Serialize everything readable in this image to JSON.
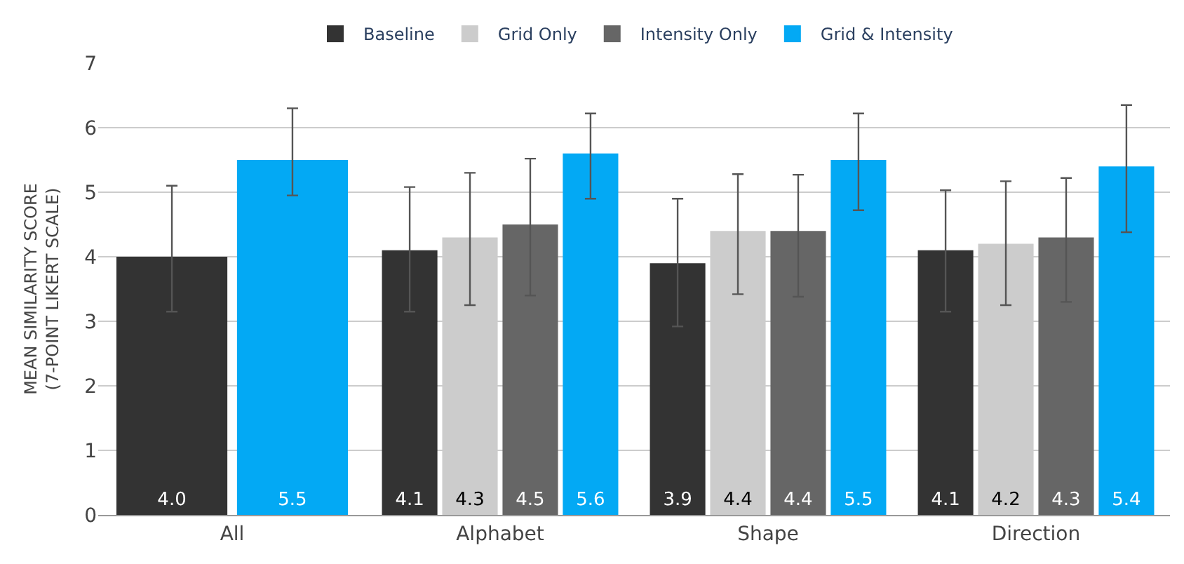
{
  "chart_data": {
    "type": "bar",
    "ylabel": "MEAN SIMILARITY SCORE\n(7-POINT LIKERT SCALE)",
    "categories": [
      "All",
      "Alphabet",
      "Shape",
      "Direction"
    ],
    "ylim": [
      0,
      7
    ],
    "yticks": [
      0,
      1,
      2,
      3,
      4,
      5,
      6,
      7
    ],
    "grid": "y",
    "legend": "top",
    "series": [
      {
        "name": "Baseline",
        "color": "#333333",
        "values": [
          4.0,
          4.1,
          3.9,
          4.1
        ],
        "value_labels": [
          "4.0",
          "4.1",
          "3.9",
          "4.1"
        ],
        "errors": [
          [
            3.15,
            5.1
          ],
          [
            3.15,
            5.08
          ],
          [
            2.92,
            4.9
          ],
          [
            3.15,
            5.03
          ]
        ]
      },
      {
        "name": "Grid Only",
        "color": "#cccccc",
        "values": [
          null,
          4.3,
          4.4,
          4.2
        ],
        "value_labels": [
          null,
          "4.3",
          "4.4",
          "4.2"
        ],
        "errors": [
          null,
          [
            3.25,
            5.3
          ],
          [
            3.42,
            5.28
          ],
          [
            3.25,
            5.17
          ]
        ]
      },
      {
        "name": "Intensity Only",
        "color": "#666666",
        "values": [
          null,
          4.5,
          4.4,
          4.3
        ],
        "value_labels": [
          null,
          "4.5",
          "4.4",
          "4.3"
        ],
        "errors": [
          null,
          [
            3.4,
            5.52
          ],
          [
            3.38,
            5.27
          ],
          [
            3.3,
            5.22
          ]
        ]
      },
      {
        "name": "Grid & Intensity",
        "color": "#03a9f4",
        "values": [
          5.5,
          5.6,
          5.5,
          5.4
        ],
        "value_labels": [
          "5.5",
          "5.6",
          "5.5",
          "5.4"
        ],
        "errors": [
          [
            4.95,
            6.3
          ],
          [
            4.9,
            6.22
          ],
          [
            4.72,
            6.22
          ],
          [
            4.38,
            6.35
          ]
        ]
      }
    ]
  }
}
